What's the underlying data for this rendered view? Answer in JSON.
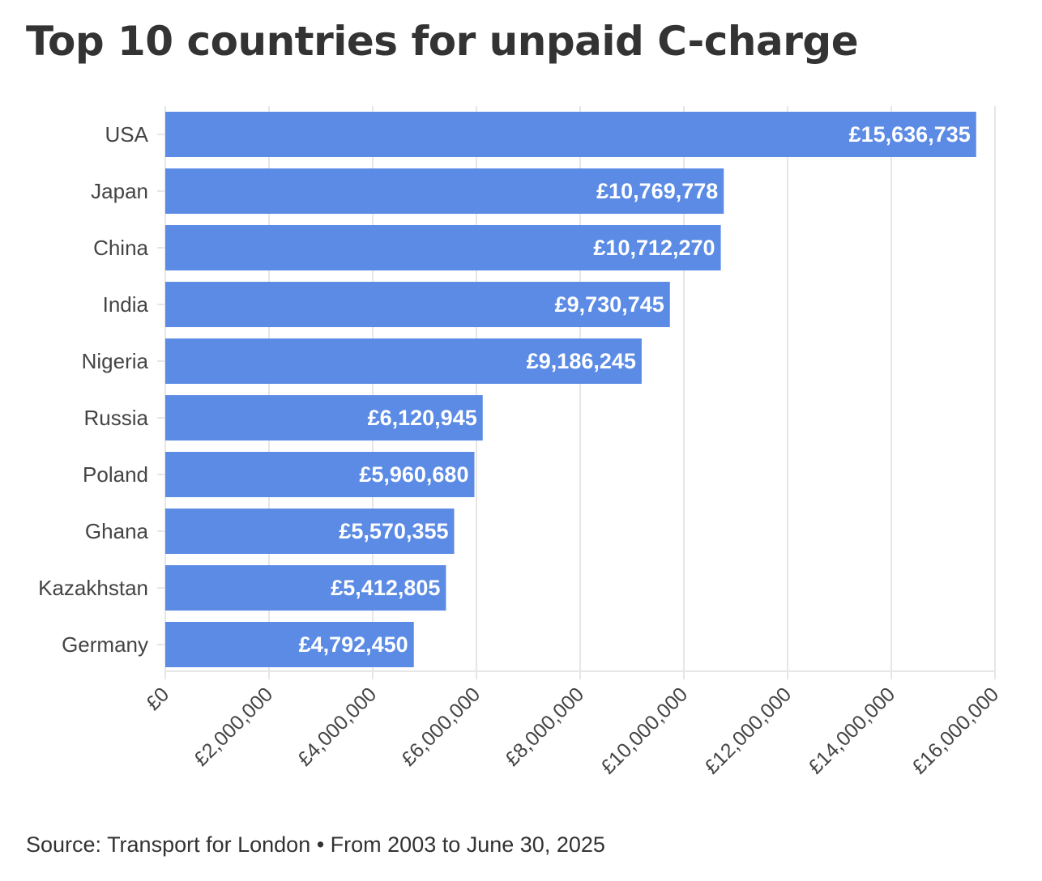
{
  "chart_data": {
    "type": "bar",
    "orientation": "horizontal",
    "title": "Top 10 countries for unpaid C-charge",
    "source": "Source: Transport for London • From 2003 to June 30, 2025",
    "categories": [
      "USA",
      "Japan",
      "China",
      "India",
      "Nigeria",
      "Russia",
      "Poland",
      "Ghana",
      "Kazakhstan",
      "Germany"
    ],
    "values": [
      15636735,
      10769778,
      10712270,
      9730745,
      9186245,
      6120945,
      5960680,
      5570355,
      5412805,
      4792450
    ],
    "value_labels": [
      "£15,636,735",
      "£10,769,778",
      "£10,712,270",
      "£9,730,745",
      "£9,186,245",
      "£6,120,945",
      "£5,960,680",
      "£5,570,355",
      "£5,412,805",
      "£4,792,450"
    ],
    "xlim": [
      0,
      16000000
    ],
    "xticks": [
      0,
      2000000,
      4000000,
      6000000,
      8000000,
      10000000,
      12000000,
      14000000,
      16000000
    ],
    "xtick_labels": [
      "£0",
      "£2,000,000",
      "£4,000,000",
      "£6,000,000",
      "£8,000,000",
      "£10,000,000",
      "£12,000,000",
      "£14,000,000",
      "£16,000,000"
    ],
    "xlabel": "",
    "ylabel": "",
    "grid": true,
    "bar_color": "#5b8be5"
  }
}
